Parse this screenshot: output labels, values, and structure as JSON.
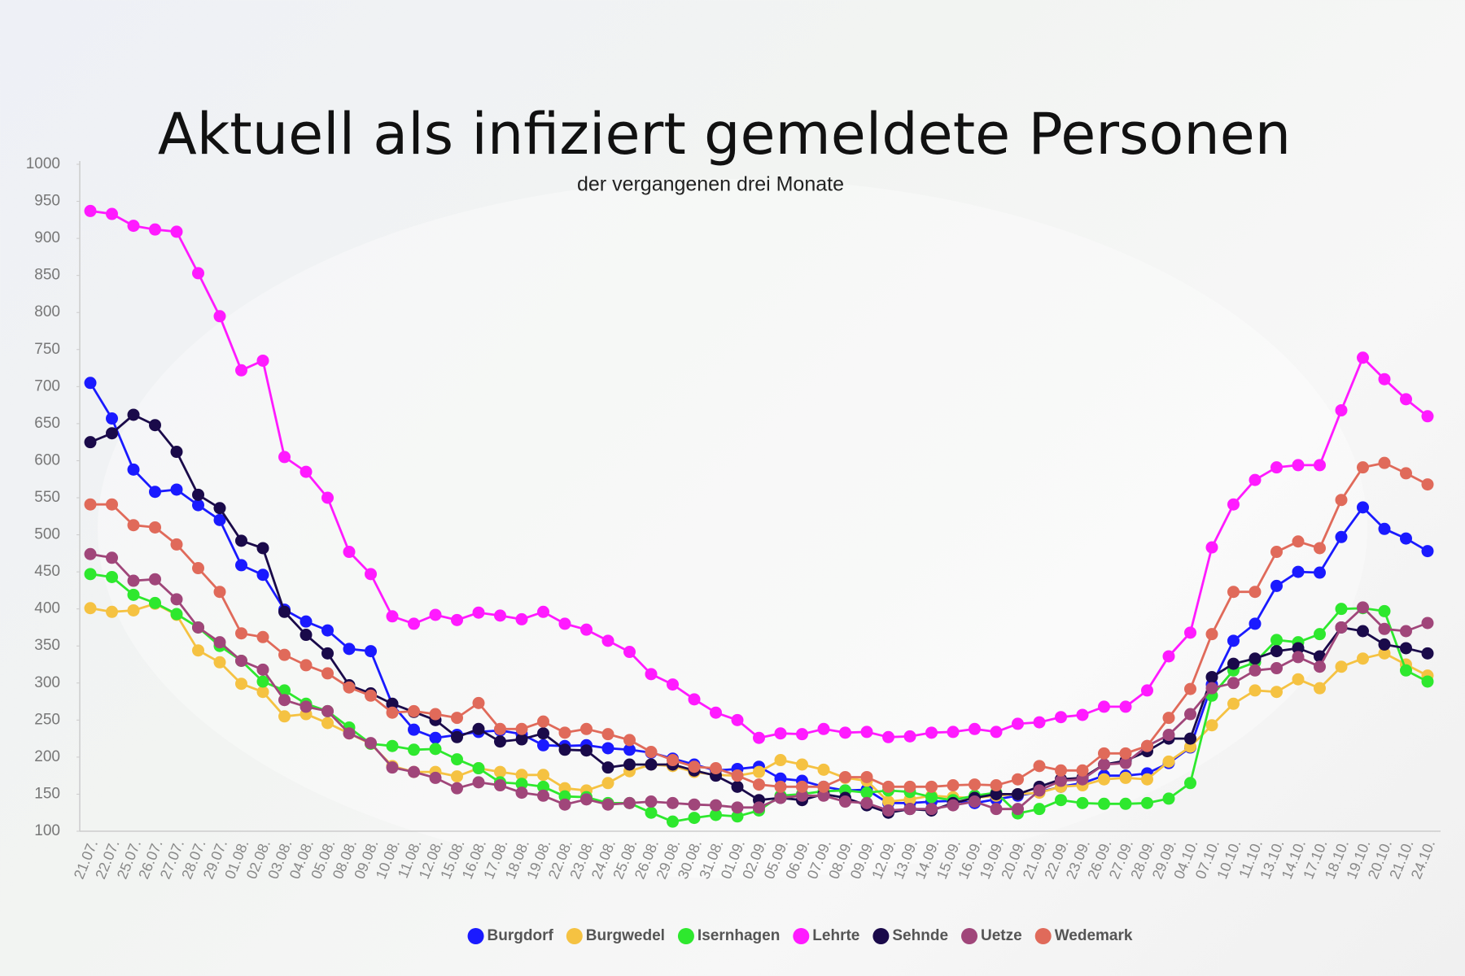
{
  "chart_data": {
    "type": "line",
    "title": "Aktuell als infiziert gemeldete Personen",
    "subtitle": "der vergangenen drei Monate",
    "categories": [
      "21.07.",
      "22.07.",
      "25.07.",
      "26.07.",
      "27.07.",
      "28.07.",
      "29.07.",
      "01.08.",
      "02.08.",
      "03.08.",
      "04.08.",
      "05.08.",
      "08.08.",
      "09.08.",
      "10.08.",
      "11.08.",
      "12.08.",
      "15.08.",
      "16.08.",
      "17.08.",
      "18.08.",
      "19.08.",
      "22.08.",
      "23.08.",
      "24.08.",
      "25.08.",
      "26.08.",
      "29.08.",
      "30.08.",
      "31.08.",
      "01.09.",
      "02.09.",
      "05.09.",
      "06.09.",
      "07.09.",
      "08.09.",
      "09.09.",
      "12.09.",
      "13.09.",
      "14.09.",
      "15.09.",
      "16.09.",
      "19.09.",
      "20.09.",
      "21.09.",
      "22.09.",
      "23.09.",
      "26.09.",
      "27.09.",
      "28.09.",
      "29.09.",
      "04.10.",
      "07.10.",
      "10.10.",
      "11.10.",
      "13.10.",
      "14.10.",
      "17.10.",
      "18.10.",
      "19.10.",
      "20.10.",
      "21.10.",
      "24.10."
    ],
    "series": [
      {
        "name": "Burgdorf",
        "color": "#1a1aff",
        "values": [
          705,
          657,
          588,
          558,
          561,
          540,
          520,
          459,
          446,
          399,
          383,
          371,
          346,
          343,
          271,
          237,
          226,
          230,
          234,
          236,
          231,
          216,
          215,
          216,
          212,
          210,
          206,
          198,
          190,
          182,
          184,
          187,
          171,
          168,
          160,
          155,
          156,
          138,
          138,
          140,
          141,
          138,
          143,
          148,
          153,
          160,
          165,
          175,
          175,
          178,
          192,
          213,
          298,
          357,
          380,
          431,
          450,
          449,
          497,
          537,
          508,
          495,
          478
        ]
      },
      {
        "name": "Burgwedel",
        "color": "#f5c242",
        "values": [
          401,
          396,
          398,
          407,
          392,
          344,
          328,
          299,
          288,
          255,
          258,
          246,
          232,
          218,
          188,
          180,
          180,
          174,
          185,
          180,
          176,
          176,
          158,
          155,
          165,
          181,
          190,
          188,
          180,
          176,
          175,
          180,
          196,
          190,
          183,
          172,
          168,
          140,
          143,
          148,
          146,
          145,
          148,
          150,
          152,
          160,
          162,
          170,
          172,
          170,
          194,
          214,
          243,
          272,
          290,
          288,
          305,
          293,
          322,
          333,
          340,
          325,
          310
        ]
      },
      {
        "name": "Isernhagen",
        "color": "#2ee82e",
        "values": [
          447,
          443,
          419,
          408,
          393,
          375,
          350,
          330,
          302,
          290,
          272,
          262,
          240,
          218,
          215,
          210,
          211,
          197,
          185,
          166,
          164,
          160,
          147,
          146,
          138,
          138,
          125,
          113,
          118,
          122,
          120,
          128,
          148,
          150,
          154,
          155,
          152,
          155,
          153,
          146,
          142,
          148,
          152,
          124,
          130,
          142,
          138,
          137,
          137,
          138,
          144,
          165,
          283,
          317,
          328,
          358,
          355,
          366,
          400,
          401,
          397,
          317,
          302
        ]
      },
      {
        "name": "Lehrte",
        "color": "#ff1aff",
        "values": [
          937,
          933,
          917,
          912,
          909,
          853,
          795,
          722,
          735,
          605,
          585,
          550,
          477,
          447,
          390,
          380,
          392,
          385,
          395,
          391,
          386,
          396,
          380,
          372,
          357,
          342,
          312,
          298,
          278,
          260,
          250,
          226,
          232,
          231,
          238,
          233,
          234,
          227,
          228,
          233,
          234,
          238,
          234,
          245,
          247,
          254,
          257,
          268,
          268,
          290,
          336,
          368,
          483,
          541,
          574,
          591,
          594,
          594,
          668,
          739,
          710,
          683,
          660
        ]
      },
      {
        "name": "Sehnde",
        "color": "#1a0a4a",
        "values": [
          625,
          637,
          662,
          648,
          612,
          554,
          536,
          492,
          482,
          396,
          365,
          340,
          297,
          286,
          272,
          261,
          250,
          227,
          238,
          221,
          224,
          232,
          210,
          209,
          186,
          190,
          190,
          190,
          182,
          175,
          160,
          142,
          145,
          142,
          150,
          145,
          135,
          125,
          130,
          128,
          138,
          145,
          150,
          150,
          160,
          170,
          172,
          190,
          195,
          208,
          225,
          225,
          308,
          326,
          333,
          343,
          347,
          336,
          375,
          370,
          352,
          347,
          340
        ]
      },
      {
        "name": "Uetze",
        "color": "#a0467a",
        "values": [
          474,
          469,
          438,
          440,
          413,
          375,
          355,
          330,
          318,
          277,
          268,
          262,
          232,
          219,
          186,
          180,
          172,
          158,
          166,
          162,
          152,
          148,
          136,
          143,
          136,
          138,
          140,
          138,
          136,
          135,
          132,
          132,
          145,
          148,
          148,
          140,
          138,
          128,
          130,
          130,
          135,
          140,
          130,
          130,
          155,
          168,
          170,
          190,
          192,
          215,
          230,
          258,
          293,
          300,
          317,
          320,
          335,
          322,
          375,
          402,
          373,
          370,
          381
        ]
      },
      {
        "name": "Wedemark",
        "color": "#e06a5a",
        "values": [
          541,
          541,
          513,
          510,
          487,
          455,
          423,
          367,
          362,
          338,
          324,
          313,
          294,
          283,
          260,
          262,
          258,
          253,
          273,
          238,
          238,
          248,
          233,
          238,
          231,
          223,
          207,
          196,
          187,
          185,
          175,
          163,
          160,
          160,
          160,
          173,
          173,
          160,
          160,
          160,
          162,
          163,
          162,
          170,
          188,
          182,
          182,
          205,
          205,
          215,
          253,
          292,
          366,
          423,
          423,
          477,
          491,
          482,
          547,
          591,
          597,
          583,
          568
        ]
      }
    ],
    "ylim": [
      100,
      1000
    ],
    "yticks": [
      100,
      150,
      200,
      250,
      300,
      350,
      400,
      450,
      500,
      550,
      600,
      650,
      700,
      750,
      800,
      850,
      900,
      950,
      1000
    ],
    "grid": false,
    "legend": "bottom"
  }
}
